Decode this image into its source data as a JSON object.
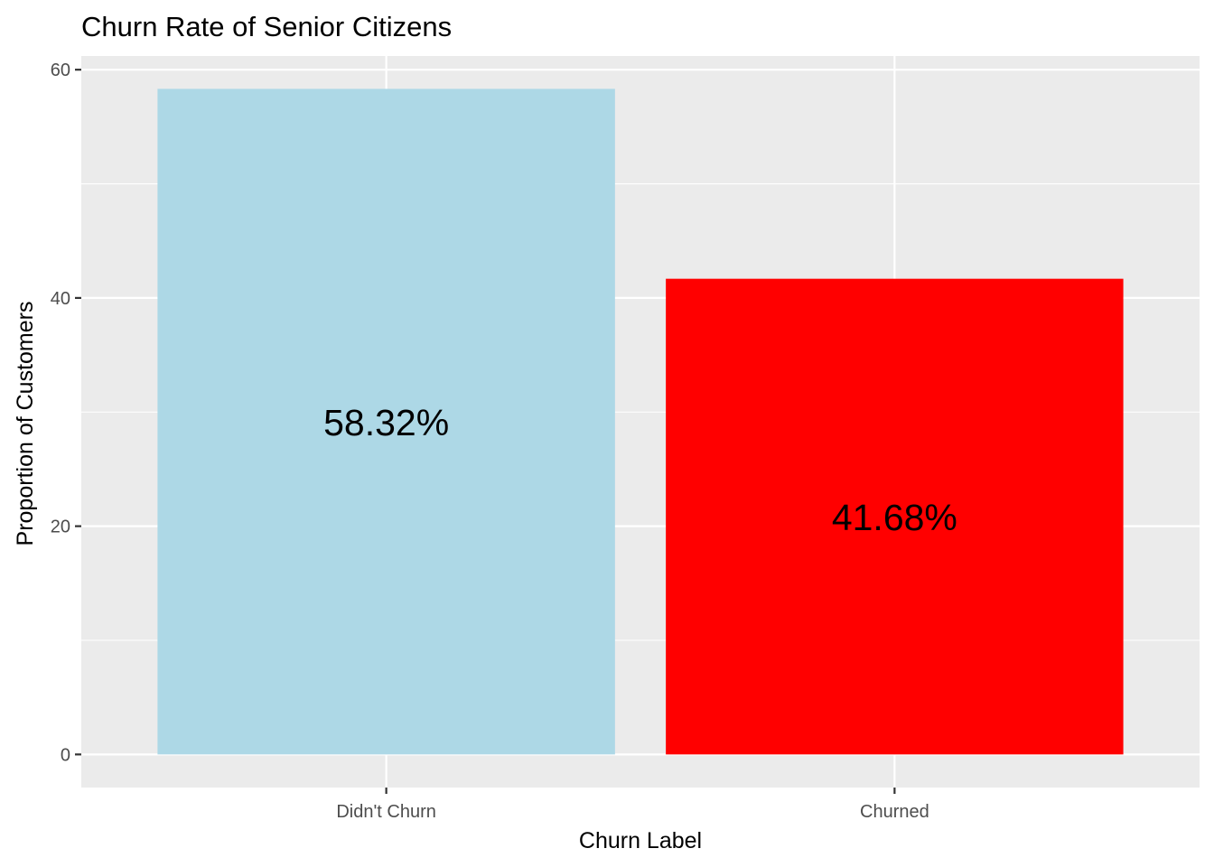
{
  "chart_data": {
    "type": "bar",
    "title": "Churn Rate of Senior Citizens",
    "xlabel": "Churn Label",
    "ylabel": "Proportion of Customers",
    "categories": [
      "Didn't Churn",
      "Churned"
    ],
    "values": [
      58.32,
      41.68
    ],
    "data_labels": [
      "58.32%",
      "41.68%"
    ],
    "colors": [
      "#add8e6",
      "#ff0000"
    ],
    "ylim": [
      -2.9,
      61.2
    ],
    "yticks": [
      0,
      20,
      40,
      60
    ],
    "grid": true,
    "panel_background": "#ebebeb",
    "gridline_color": "#ffffff"
  }
}
